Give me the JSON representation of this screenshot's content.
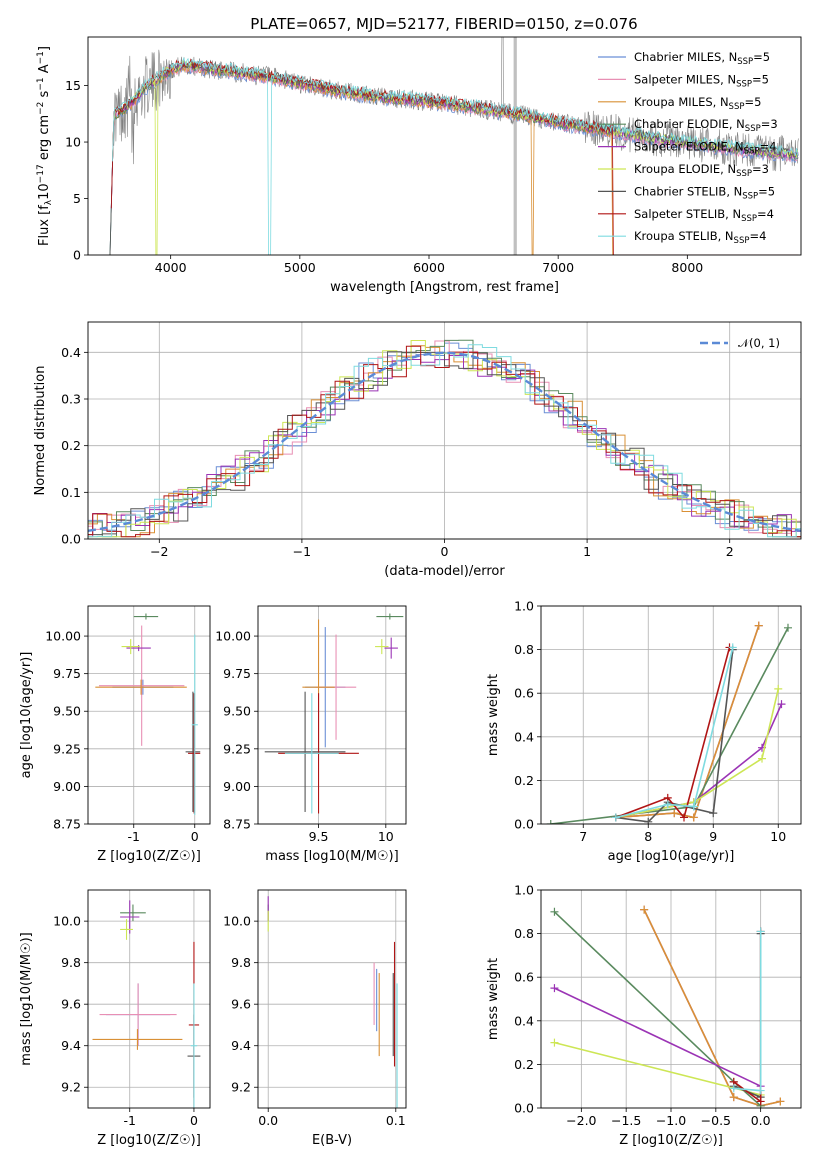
{
  "figure": {
    "title": "PLATE=0657, MJD=52177, FIBERID=0150, z=0.076"
  },
  "colors": {
    "Chabrier MILES": "#6b8fd6",
    "Salpeter MILES": "#e88fb4",
    "Kroupa MILES": "#d99036",
    "Chabrier ELODIE": "#5a8a5f",
    "Salpeter ELODIE": "#9b34b5",
    "Kroupa ELODIE": "#cde655",
    "Chabrier STELIB": "#555555",
    "Salpeter STELIB": "#b01515",
    "Kroupa STELIB": "#7fdbe0",
    "data": "#808080",
    "normal": "#5b8ad6"
  },
  "chart_data": [
    {
      "id": "spectrum",
      "type": "line",
      "title": "PLATE=0657, MJD=52177, FIBERID=0150, z=0.076",
      "xlabel": "wavelength [Angstrom, rest frame]",
      "ylabel_main": "Flux [f",
      "ylabel_sub": "λ",
      "ylabel_rest": "10",
      "ylabel_exp": "−17",
      "ylabel_tail": " erg cm",
      "ylabel_exp2": "−2",
      "ylabel_tail2": " s",
      "ylabel_exp3": "−1",
      "ylabel_tail3": " A",
      "ylabel_exp4": "−1",
      "ylabel_end": "]",
      "xlim": [
        3360,
        8880
      ],
      "ylim": [
        0,
        19.3
      ],
      "xticks": [
        4000,
        5000,
        6000,
        7000,
        8000
      ],
      "yticks": [
        0,
        5,
        10,
        15
      ],
      "legend_position": "top-right",
      "series": [
        {
          "name": "Chabrier MILES",
          "nssp": "5"
        },
        {
          "name": "Salpeter MILES",
          "nssp": "5"
        },
        {
          "name": "Kroupa MILES",
          "nssp": "5"
        },
        {
          "name": "Chabrier ELODIE",
          "nssp": "3"
        },
        {
          "name": "Salpeter ELODIE",
          "nssp": "4"
        },
        {
          "name": "Kroupa ELODIE",
          "nssp": "3"
        },
        {
          "name": "Chabrier STELIB",
          "nssp": "5"
        },
        {
          "name": "Salpeter STELIB",
          "nssp": "4"
        },
        {
          "name": "Kroupa STELIB",
          "nssp": "4"
        }
      ],
      "model_continuum": {
        "x": [
          3530,
          3600,
          3700,
          3800,
          3900,
          4000,
          4100,
          4300,
          4500,
          4800,
          5000,
          5300,
          5600,
          5900,
          6200,
          6500,
          6800,
          7100,
          7400,
          7700,
          8000,
          8300,
          8600,
          8800
        ],
        "y": [
          12.3,
          12.6,
          13.5,
          14.8,
          15.6,
          16.4,
          16.8,
          16.5,
          16.2,
          15.7,
          15.2,
          14.5,
          14.0,
          13.7,
          13.3,
          12.8,
          12.2,
          11.5,
          11.0,
          10.4,
          9.9,
          9.5,
          9.1,
          8.9
        ]
      }
    },
    {
      "id": "residuals",
      "type": "line",
      "xlabel": "(data-model)/error",
      "ylabel": "Normed distribution",
      "xlim": [
        -2.5,
        2.5
      ],
      "ylim": [
        0,
        0.465
      ],
      "xticks": [
        -2,
        -1,
        0,
        1,
        2
      ],
      "yticks": [
        0.0,
        0.1,
        0.2,
        0.3,
        0.4
      ],
      "legend_position": "top-right",
      "legend_label": "𝒩(0, 1)",
      "normal": {
        "mean": 0,
        "sigma": 1
      }
    },
    {
      "id": "age_vs_Z",
      "type": "scatter",
      "xlabel": "Z [log10(Z/Z☉)]",
      "ylabel": "age  [log10(age/yr)]",
      "xlim": [
        -1.75,
        0.25
      ],
      "ylim": [
        8.75,
        10.2
      ],
      "xticks": [
        -1,
        0
      ],
      "yticks": [
        8.75,
        9.0,
        9.25,
        9.5,
        9.75,
        10.0
      ],
      "points": [
        {
          "series": "Chabrier MILES",
          "x": -0.85,
          "y": 9.66,
          "xerr": 0.5,
          "yerr": 0.05
        },
        {
          "series": "Salpeter MILES",
          "x": -0.87,
          "y": 9.67,
          "xerr": 0.7,
          "yerr": 0.4
        },
        {
          "series": "Kroupa MILES",
          "x": -0.88,
          "y": 9.66,
          "xerr": 0.75,
          "yerr": 0.05
        },
        {
          "series": "Chabrier ELODIE",
          "x": -0.8,
          "y": 10.13,
          "xerr": 0.2,
          "yerr": 0.02
        },
        {
          "series": "Salpeter ELODIE",
          "x": -0.92,
          "y": 9.92,
          "xerr": 0.2,
          "yerr": 0.02
        },
        {
          "series": "Kroupa ELODIE",
          "x": -1.05,
          "y": 9.93,
          "xerr": 0.15,
          "yerr": 0.05
        },
        {
          "series": "Chabrier STELIB",
          "x": -0.03,
          "y": 9.23,
          "xerr": 0.12,
          "yerr": 0.4
        },
        {
          "series": "Salpeter STELIB",
          "x": -0.01,
          "y": 9.22,
          "xerr": 0.1,
          "yerr": 0.4
        },
        {
          "series": "Kroupa STELIB",
          "x": 0.0,
          "y": 9.41,
          "xerr": 0.05,
          "yerr": 0.6
        }
      ]
    },
    {
      "id": "age_vs_mass",
      "type": "scatter",
      "xlabel": "mass [log10(M/M☉)]",
      "ylabel": "",
      "xlim": [
        9.05,
        10.15
      ],
      "ylim": [
        8.75,
        10.2
      ],
      "xticks": [
        9.5,
        10.0
      ],
      "yticks": [
        8.75,
        9.0,
        9.25,
        9.5,
        9.75,
        10.0
      ],
      "points": [
        {
          "series": "Chabrier MILES",
          "x": 9.55,
          "y": 9.66,
          "xerr": 0.15,
          "yerr": 0.4
        },
        {
          "series": "Salpeter MILES",
          "x": 9.63,
          "y": 9.66,
          "xerr": 0.15,
          "yerr": 0.35
        },
        {
          "series": "Kroupa MILES",
          "x": 9.5,
          "y": 9.66,
          "xerr": 0.12,
          "yerr": 0.45
        },
        {
          "series": "Chabrier ELODIE",
          "x": 10.03,
          "y": 10.13,
          "xerr": 0.1,
          "yerr": 0.02
        },
        {
          "series": "Salpeter ELODIE",
          "x": 10.04,
          "y": 9.92,
          "xerr": 0.05,
          "yerr": 0.07
        },
        {
          "series": "Kroupa ELODIE",
          "x": 9.97,
          "y": 9.93,
          "xerr": 0.05,
          "yerr": 0.05
        },
        {
          "series": "Chabrier STELIB",
          "x": 9.4,
          "y": 9.23,
          "xerr": 0.3,
          "yerr": 0.4
        },
        {
          "series": "Salpeter STELIB",
          "x": 9.5,
          "y": 9.22,
          "xerr": 0.3,
          "yerr": 0.4
        },
        {
          "series": "Kroupa STELIB",
          "x": 9.45,
          "y": 9.22,
          "xerr": 0.2,
          "yerr": 0.4
        }
      ]
    },
    {
      "id": "weight_vs_age",
      "type": "line",
      "xlabel": "age  [log10(age/yr)]",
      "ylabel": "mass weight",
      "xlim": [
        6.35,
        10.35
      ],
      "ylim": [
        0,
        1.0
      ],
      "xticks": [
        7,
        8,
        9,
        10
      ],
      "yticks": [
        0.0,
        0.2,
        0.4,
        0.6,
        0.8,
        1.0
      ],
      "series": [
        {
          "name": "Chabrier MILES",
          "x": [
            7.5,
            8.4,
            8.7,
            9.7
          ],
          "y": [
            0.03,
            0.05,
            0.03,
            0.91
          ]
        },
        {
          "name": "Salpeter MILES",
          "x": [
            7.5,
            8.4,
            8.7,
            9.7
          ],
          "y": [
            0.03,
            0.05,
            0.03,
            0.91
          ]
        },
        {
          "name": "Kroupa MILES",
          "x": [
            7.5,
            8.4,
            8.7,
            9.7
          ],
          "y": [
            0.03,
            0.05,
            0.03,
            0.91
          ]
        },
        {
          "name": "Chabrier ELODIE",
          "x": [
            6.5,
            8.7,
            10.15
          ],
          "y": [
            0.0,
            0.08,
            0.9
          ]
        },
        {
          "name": "Salpeter ELODIE",
          "x": [
            7.5,
            8.7,
            9.75,
            10.05
          ],
          "y": [
            0.03,
            0.1,
            0.35,
            0.55
          ]
        },
        {
          "name": "Kroupa ELODIE",
          "x": [
            7.5,
            8.7,
            9.75,
            10.0
          ],
          "y": [
            0.03,
            0.1,
            0.3,
            0.62
          ]
        },
        {
          "name": "Chabrier STELIB",
          "x": [
            7.5,
            8.0,
            8.3,
            9.0,
            9.3
          ],
          "y": [
            0.03,
            0.01,
            0.1,
            0.05,
            0.8
          ]
        },
        {
          "name": "Salpeter STELIB",
          "x": [
            7.5,
            8.3,
            8.55,
            9.25
          ],
          "y": [
            0.03,
            0.12,
            0.03,
            0.81
          ]
        },
        {
          "name": "Kroupa STELIB",
          "x": [
            7.5,
            8.3,
            8.7,
            9.3
          ],
          "y": [
            0.03,
            0.09,
            0.08,
            0.81
          ]
        }
      ]
    },
    {
      "id": "mass_vs_Z",
      "type": "scatter",
      "xlabel": "Z [log10(Z/Z☉)]",
      "ylabel": "mass [log10(M/M☉)]",
      "xlim": [
        -1.65,
        0.25
      ],
      "ylim": [
        9.1,
        10.15
      ],
      "xticks": [
        -1,
        0
      ],
      "yticks": [
        9.2,
        9.4,
        9.6,
        9.8,
        10.0
      ],
      "points": [
        {
          "series": "Chabrier MILES",
          "x": -0.87,
          "y": 9.55,
          "xerr": 0.5,
          "yerr": 0.15
        },
        {
          "series": "Salpeter MILES",
          "x": -0.87,
          "y": 9.55,
          "xerr": 0.6,
          "yerr": 0.15
        },
        {
          "series": "Kroupa MILES",
          "x": -0.88,
          "y": 9.43,
          "xerr": 0.7,
          "yerr": 0.05
        },
        {
          "series": "Chabrier ELODIE",
          "x": -0.95,
          "y": 10.04,
          "xerr": 0.2,
          "yerr": 0.04
        },
        {
          "series": "Salpeter ELODIE",
          "x": -1.0,
          "y": 10.02,
          "xerr": 0.15,
          "yerr": 0.08
        },
        {
          "series": "Kroupa ELODIE",
          "x": -1.05,
          "y": 9.96,
          "xerr": 0.1,
          "yerr": 0.05
        },
        {
          "series": "Chabrier STELIB",
          "x": 0.0,
          "y": 9.35,
          "xerr": 0.1,
          "yerr": 0.2
        },
        {
          "series": "Salpeter STELIB",
          "x": 0.0,
          "y": 9.5,
          "xerr": 0.08,
          "yerr": 0.4
        },
        {
          "series": "Kroupa STELIB",
          "x": 0.0,
          "y": 9.4,
          "xerr": 0.05,
          "yerr": 0.3
        }
      ]
    },
    {
      "id": "mass_vs_ebv",
      "type": "scatter",
      "xlabel": "E(B-V)",
      "ylabel": "",
      "xlim": [
        -0.008,
        0.108
      ],
      "ylim": [
        9.1,
        10.15
      ],
      "xticks": [
        0.0,
        0.1
      ],
      "yticks": [
        9.2,
        9.4,
        9.6,
        9.8,
        10.0
      ],
      "points": [
        {
          "series": "Chabrier MILES",
          "x": 0.085,
          "y": 9.62,
          "xerr": 0,
          "yerr": 0.15
        },
        {
          "series": "Salpeter MILES",
          "x": 0.083,
          "y": 9.65,
          "xerr": 0,
          "yerr": 0.15
        },
        {
          "series": "Kroupa MILES",
          "x": 0.087,
          "y": 9.55,
          "xerr": 0,
          "yerr": 0.2
        },
        {
          "series": "Chabrier ELODIE",
          "x": 0.0,
          "y": 10.04,
          "xerr": 0,
          "yerr": 0.04
        },
        {
          "series": "Salpeter ELODIE",
          "x": 0.0,
          "y": 10.06,
          "xerr": 0,
          "yerr": 0.06
        },
        {
          "series": "Kroupa ELODIE",
          "x": 0.0,
          "y": 10.0,
          "xerr": 0,
          "yerr": 0.05
        },
        {
          "series": "Chabrier STELIB",
          "x": 0.098,
          "y": 9.55,
          "xerr": 0,
          "yerr": 0.2
        },
        {
          "series": "Salpeter STELIB",
          "x": 0.099,
          "y": 9.6,
          "xerr": 0,
          "yerr": 0.3
        },
        {
          "series": "Kroupa STELIB",
          "x": 0.101,
          "y": 9.4,
          "xerr": 0,
          "yerr": 0.3
        }
      ]
    },
    {
      "id": "weight_vs_Z",
      "type": "line",
      "xlabel": "Z [log10(Z/Z☉)]",
      "ylabel": "mass weight",
      "xlim": [
        -2.45,
        0.45
      ],
      "ylim": [
        0,
        1.0
      ],
      "xticks": [
        -2.0,
        -1.5,
        -1.0,
        -0.5,
        0.0
      ],
      "yticks": [
        0.0,
        0.2,
        0.4,
        0.6,
        0.8,
        1.0
      ],
      "series": [
        {
          "name": "Chabrier MILES",
          "x": [
            -1.3,
            -0.3,
            0.0,
            0.22
          ],
          "y": [
            0.91,
            0.05,
            0.01,
            0.03
          ]
        },
        {
          "name": "Salpeter MILES",
          "x": [
            -1.3,
            -0.3,
            0.0,
            0.22
          ],
          "y": [
            0.91,
            0.05,
            0.01,
            0.03
          ]
        },
        {
          "name": "Kroupa MILES",
          "x": [
            -1.3,
            -0.3,
            0.0,
            0.22
          ],
          "y": [
            0.91,
            0.05,
            0.01,
            0.03
          ]
        },
        {
          "name": "Chabrier ELODIE",
          "x": [
            -2.3,
            -0.3,
            0.0
          ],
          "y": [
            0.9,
            0.12,
            0.01
          ]
        },
        {
          "name": "Salpeter ELODIE",
          "x": [
            -2.3,
            0.0
          ],
          "y": [
            0.55,
            0.1
          ]
        },
        {
          "name": "Kroupa ELODIE",
          "x": [
            -2.3,
            0.0
          ],
          "y": [
            0.3,
            0.06
          ]
        },
        {
          "name": "Chabrier STELIB",
          "x": [
            -0.3,
            0.0,
            0.0
          ],
          "y": [
            0.1,
            0.05,
            0.8
          ]
        },
        {
          "name": "Salpeter STELIB",
          "x": [
            -0.3,
            0.0,
            0.0
          ],
          "y": [
            0.12,
            0.03,
            0.81
          ]
        },
        {
          "name": "Kroupa STELIB",
          "x": [
            -0.3,
            0.0,
            0.0
          ],
          "y": [
            0.09,
            0.08,
            0.81
          ]
        }
      ]
    }
  ]
}
